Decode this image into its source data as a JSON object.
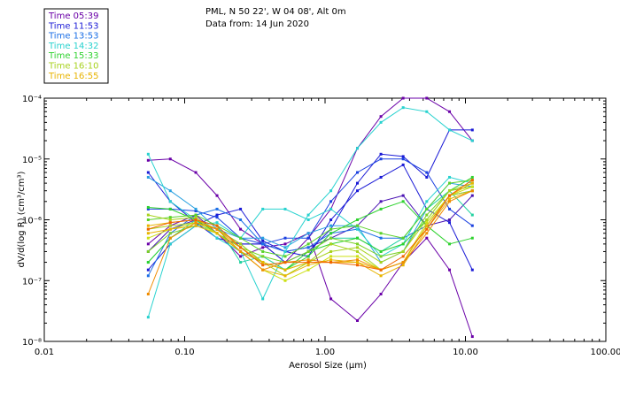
{
  "header": {
    "location": "PML, N 50 22', W 04 08', Alt 0m",
    "date_line": "Data from: 14 Jun 2020"
  },
  "chart_data": {
    "type": "line",
    "xlabel": "Aerosol Size (μm)",
    "ylabel": "dV/d(log R) (cm³/cm³)",
    "x_scale": "log",
    "y_scale": "log",
    "xlim": [
      0.01,
      100
    ],
    "ylim": [
      1e-08,
      0.0001
    ],
    "x_ticks": [
      "0.01",
      "0.10",
      "1.00",
      "10.00",
      "100.00"
    ],
    "y_ticks": [
      "10⁻⁸",
      "10⁻⁷",
      "10⁻⁶",
      "10⁻⁵",
      "10⁻⁴"
    ],
    "x": [
      0.055,
      0.079,
      0.12,
      0.17,
      0.25,
      0.36,
      0.52,
      0.76,
      1.1,
      1.7,
      2.5,
      3.6,
      5.3,
      7.7,
      11.2
    ],
    "legend": [
      {
        "label": "Time 05:39",
        "color": "#6a00a8"
      },
      {
        "label": "Time 11:53",
        "color": "#1a1ad6"
      },
      {
        "label": "Time 13:53",
        "color": "#1a6ee6"
      },
      {
        "label": "Time 14:32",
        "color": "#28d2cf"
      },
      {
        "label": "Time 15:33",
        "color": "#2fd22f"
      },
      {
        "label": "Time 16:10",
        "color": "#a8d21e"
      },
      {
        "label": "Time 16:55",
        "color": "#e8b400"
      }
    ],
    "series": [
      {
        "color": "#6a00a8",
        "values": [
          9.5e-06,
          1e-05,
          6e-06,
          2.5e-06,
          7e-07,
          4e-07,
          2e-07,
          5e-07,
          1.5e-06,
          1.5e-05,
          5e-05,
          0.0001,
          0.0001,
          6e-05,
          2e-05
        ]
      },
      {
        "color": "#6a00a8",
        "values": [
          4e-07,
          8e-07,
          1.2e-06,
          6e-07,
          2.5e-07,
          3.5e-07,
          4e-07,
          6e-07,
          5e-08,
          2.2e-08,
          6e-08,
          2e-07,
          5e-07,
          1.5e-07,
          1.2e-08
        ]
      },
      {
        "color": "#4b14b4",
        "values": [
          3e-07,
          7e-07,
          1e-06,
          7e-07,
          4e-07,
          4e-07,
          3e-07,
          3.5e-07,
          5e-07,
          8e-07,
          2e-06,
          2.5e-06,
          8e-07,
          1e-06,
          2.5e-06
        ]
      },
      {
        "color": "#1a1ad6",
        "values": [
          6e-06,
          2e-06,
          9e-07,
          5e-07,
          4e-07,
          4e-07,
          2e-07,
          3e-07,
          7e-07,
          4e-06,
          1.2e-05,
          1.1e-05,
          5e-06,
          3e-05,
          3e-05
        ]
      },
      {
        "color": "#1a1ad6",
        "values": [
          1.5e-07,
          4e-07,
          8e-07,
          1.2e-06,
          1.5e-06,
          4.5e-07,
          3e-07,
          2.5e-07,
          1e-06,
          3e-06,
          5e-06,
          8e-06,
          1.5e-06,
          9e-07,
          1.5e-07
        ]
      },
      {
        "color": "#1a40e0",
        "values": [
          1.5e-06,
          1.5e-06,
          1.4e-06,
          1.1e-06,
          5e-07,
          4e-07,
          5e-07,
          5e-07,
          2e-06,
          6e-06,
          1e-05,
          1e-05,
          6e-06,
          1.5e-06,
          8e-07
        ]
      },
      {
        "color": "#1a6ee6",
        "values": [
          1.2e-07,
          6e-07,
          1.2e-06,
          1.5e-06,
          1e-06,
          4e-07,
          3e-07,
          3.5e-07,
          6e-07,
          7e-07,
          5e-07,
          5e-07,
          8e-07,
          2.5e-06,
          3e-06
        ]
      },
      {
        "color": "#28a0e0",
        "values": [
          5e-06,
          3e-06,
          1.5e-06,
          7e-07,
          5e-07,
          5e-07,
          3.5e-07,
          6e-07,
          8e-07,
          8e-07,
          2e-07,
          3e-07,
          1.5e-06,
          4e-06,
          3.5e-06
        ]
      },
      {
        "color": "#28d2cf",
        "values": [
          1.2e-05,
          2e-06,
          1e-06,
          5e-07,
          3e-07,
          5e-08,
          3e-07,
          1.2e-06,
          3e-06,
          1.5e-05,
          4e-05,
          7e-05,
          6e-05,
          3e-05,
          2e-05
        ]
      },
      {
        "color": "#28d2cf",
        "values": [
          2.5e-08,
          4e-07,
          8e-07,
          9e-07,
          5e-07,
          1.5e-06,
          1.5e-06,
          1e-06,
          1.5e-06,
          7e-07,
          2.5e-07,
          4e-07,
          2e-06,
          5e-06,
          4e-06
        ]
      },
      {
        "color": "#22d2a0",
        "values": [
          2e-07,
          5e-07,
          1e-06,
          8e-07,
          2e-07,
          2.5e-07,
          1.5e-07,
          3e-07,
          5e-07,
          5e-07,
          3e-07,
          5e-07,
          1.5e-06,
          3e-06,
          1.2e-06
        ]
      },
      {
        "color": "#2fd22f",
        "values": [
          1.6e-06,
          1.5e-06,
          1e-06,
          6e-07,
          3e-07,
          2e-07,
          1.5e-07,
          3e-07,
          4e-07,
          5e-07,
          3e-07,
          4e-07,
          1e-06,
          3e-06,
          5e-06
        ]
      },
      {
        "color": "#2fd22f",
        "values": [
          2e-07,
          5e-07,
          9e-07,
          7e-07,
          4e-07,
          2e-07,
          1.5e-07,
          2.5e-07,
          6e-07,
          1e-06,
          1.5e-06,
          2e-06,
          8e-07,
          4e-07,
          5e-07
        ]
      },
      {
        "color": "#5ad22a",
        "values": [
          1e-06,
          1.1e-06,
          1.2e-06,
          8e-07,
          5e-07,
          3e-07,
          2.5e-07,
          4e-07,
          7e-07,
          8e-07,
          6e-07,
          5e-07,
          1.5e-06,
          4e-06,
          4.5e-06
        ]
      },
      {
        "color": "#7ad226",
        "values": [
          3e-07,
          6e-07,
          8e-07,
          6e-07,
          3.5e-07,
          2.5e-07,
          2e-07,
          3e-07,
          5e-07,
          4e-07,
          2.5e-07,
          3e-07,
          1.2e-06,
          3e-06,
          3.5e-06
        ]
      },
      {
        "color": "#a8d21e",
        "values": [
          7e-07,
          8e-07,
          9e-07,
          7e-07,
          4e-07,
          2e-07,
          1.5e-07,
          2e-07,
          3e-07,
          3.5e-07,
          2e-07,
          3e-07,
          1e-06,
          3e-06,
          4e-06
        ]
      },
      {
        "color": "#a8d21e",
        "values": [
          1.2e-06,
          1e-06,
          1.1e-06,
          6e-07,
          3e-07,
          2e-07,
          1.2e-07,
          2e-07,
          4e-07,
          3e-07,
          1.5e-07,
          2e-07,
          8e-07,
          2.5e-06,
          3e-06
        ]
      },
      {
        "color": "#cce014",
        "values": [
          5e-07,
          7e-07,
          9e-07,
          6e-07,
          3e-07,
          1.5e-07,
          1e-07,
          1.5e-07,
          2.5e-07,
          2.5e-07,
          1.5e-07,
          2e-07,
          9e-07,
          2.5e-06,
          3.5e-06
        ]
      },
      {
        "color": "#e8b400",
        "values": [
          8e-07,
          9e-07,
          1e-06,
          7e-07,
          3.5e-07,
          2e-07,
          1.5e-07,
          2e-07,
          2e-07,
          2e-07,
          1.5e-07,
          2e-07,
          8e-07,
          2.5e-06,
          4e-06
        ]
      },
      {
        "color": "#e8b400",
        "values": [
          6e-07,
          7e-07,
          8e-07,
          6e-07,
          3e-07,
          1.5e-07,
          1.2e-07,
          1.8e-07,
          2.2e-07,
          2e-07,
          1.2e-07,
          1.8e-07,
          7e-07,
          2.2e-06,
          3e-06
        ]
      },
      {
        "color": "#f08c00",
        "values": [
          6e-08,
          5e-07,
          9e-07,
          7e-07,
          3e-07,
          1.5e-07,
          2e-07,
          2.2e-07,
          2e-07,
          2.2e-07,
          1.5e-07,
          2e-07,
          6e-07,
          2e-06,
          3e-06
        ]
      },
      {
        "color": "#f06400",
        "values": [
          7e-07,
          9e-07,
          1e-06,
          8e-07,
          3.5e-07,
          1.8e-07,
          2e-07,
          2e-07,
          2e-07,
          1.8e-07,
          1.5e-07,
          2.5e-07,
          7e-07,
          2.5e-06,
          4.5e-06
        ]
      }
    ]
  }
}
